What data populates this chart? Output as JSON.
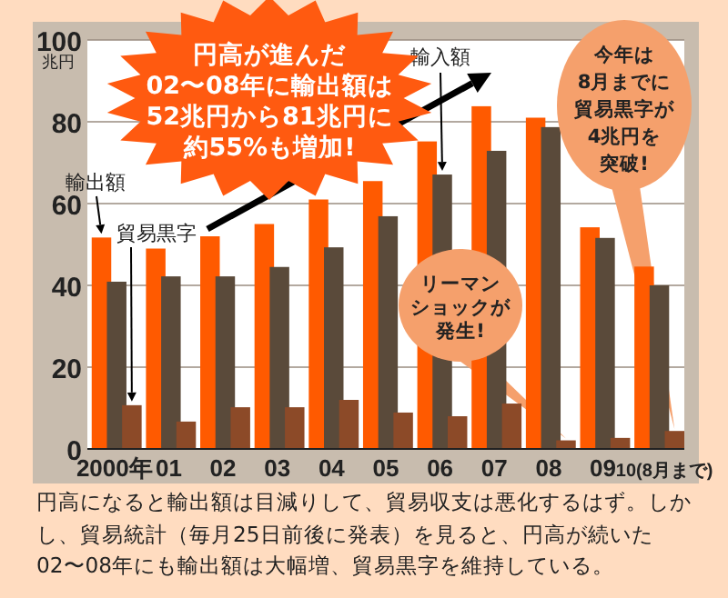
{
  "chart_data": {
    "type": "bar",
    "ylabel": "兆円",
    "categories": [
      "2000年",
      "01",
      "02",
      "03",
      "04",
      "05",
      "06",
      "07",
      "08",
      "09",
      "10(8月まで)"
    ],
    "series": [
      {
        "name": "輸出額",
        "color": "#ff5a00",
        "values": [
          51.7,
          49,
          52,
          55,
          61,
          65.5,
          75.2,
          83.8,
          81,
          54.2,
          44.6
        ]
      },
      {
        "name": "輸入額",
        "color": "#5a4a3a",
        "values": [
          40.9,
          42.2,
          42.2,
          44.5,
          49.3,
          56.9,
          67.1,
          72.9,
          78.7,
          51.6,
          40
        ]
      },
      {
        "name": "貿易黒字",
        "color": "#8c4a28",
        "values": [
          10.7,
          6.7,
          10.2,
          10.2,
          12,
          8.9,
          8,
          11.1,
          2.1,
          2.7,
          4.4
        ]
      }
    ],
    "ylim": [
      0,
      100
    ],
    "yticks": [
      0,
      20,
      40,
      60,
      80,
      100
    ],
    "grid": "y",
    "annotations": [
      "円高が進んだ02〜08年に輸出額は52兆円から81兆円に約55%も増加!",
      "リーマンショックが発生!",
      "今年は8月までに貿易黒字が4兆円を突破!",
      "円高になると輸出額は目減りして、貿易収支は悪化するはず。しかし、貿易統計（毎月25日前後に発表）を見ると、円高が続いた02〜08年にも輸出額は大幅増、貿易黒字を維持している。"
    ]
  }
}
